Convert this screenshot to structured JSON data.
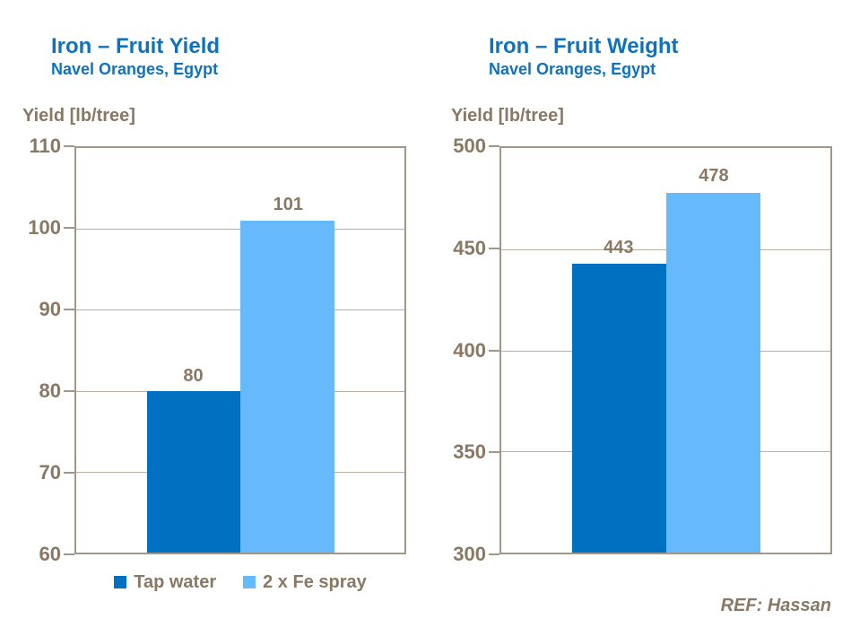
{
  "page": {
    "background": "#FFFFFF"
  },
  "colors": {
    "title_blue": "#1072BD",
    "text_brown": "#887864",
    "plot_border": "#A1968A",
    "gridline": "#BAB0A2",
    "dark_blue": "#0070C0",
    "light_blue": "#66B9FA"
  },
  "footer": {
    "ref_label": "REF: Hassan"
  },
  "chart_data": [
    {
      "type": "bar",
      "title": "Iron – Fruit Yield",
      "subtitle": "Navel Oranges, Egypt",
      "ylabel": "Yield [lb/tree]",
      "categories": [
        "Tap water",
        "2 x Fe spray"
      ],
      "values": [
        80,
        101
      ],
      "data_labels": [
        "80",
        "101"
      ],
      "bar_colors": [
        "#0070C0",
        "#66B9FA"
      ],
      "ylim": [
        60,
        110
      ],
      "ytick_step": 10,
      "ytick_labels": [
        "110",
        "100",
        "90",
        "80",
        "70",
        "60"
      ],
      "grid": true,
      "legend": [
        "Tap water",
        "2 x Fe spray"
      ],
      "legend_position": "bottom"
    },
    {
      "type": "bar",
      "title": "Iron – Fruit Weight",
      "subtitle": "Navel Oranges, Egypt",
      "ylabel": "Yield [lb/tree]",
      "categories": [
        "Tap water",
        "2 x Fe spray"
      ],
      "values": [
        443,
        478
      ],
      "data_labels": [
        "443",
        "478"
      ],
      "bar_colors": [
        "#0070C0",
        "#66B9FA"
      ],
      "ylim": [
        300,
        500
      ],
      "ytick_step": 50,
      "ytick_labels": [
        "500",
        "450",
        "400",
        "350",
        "300"
      ],
      "grid": true,
      "legend": null,
      "legend_position": "none"
    }
  ]
}
